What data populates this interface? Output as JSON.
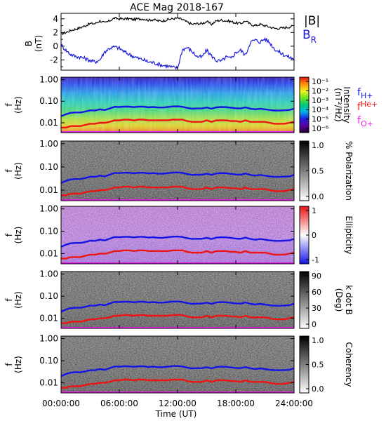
{
  "title": "ACE Mag 2018-167",
  "xlabel": "Time (UT)",
  "x_ticks": [
    "00:00:00",
    "06:00:00",
    "12:00:00",
    "18:00:00",
    "24:00:00"
  ],
  "x_range_hours": [
    0,
    24
  ],
  "colors": {
    "B_total": "#000000",
    "B_R": "#1a1adc",
    "f_H": "#1414e6",
    "f_He": "#ee1414",
    "f_O": "#e61ee6"
  },
  "legend_right": {
    "B": "|B|",
    "BR_base": "B",
    "BR_sub": "R",
    "fH_base": "f",
    "fH_sub": "H+",
    "fHe_base": "f",
    "fHe_sub": "He+",
    "fO_base": "f",
    "fO_sub": "O+"
  },
  "chart_data": [
    {
      "type": "line",
      "panel": "magnetic-field",
      "ylabel": "B",
      "yunit": "(nT)",
      "ylim": [
        -3.5,
        4.8
      ],
      "y_ticks": [
        "4",
        "2",
        "0",
        "-2"
      ],
      "y_tick_values": [
        4,
        2,
        0,
        -2
      ],
      "series": [
        {
          "name": "|B|",
          "x": [
            0,
            0.5,
            1,
            1.5,
            2,
            2.5,
            3,
            3.5,
            4,
            4.5,
            5,
            5.5,
            6,
            6.5,
            7,
            7.5,
            8,
            8.5,
            9,
            9.5,
            10,
            10.5,
            11,
            11.5,
            12,
            12.5,
            13,
            13.5,
            14,
            14.5,
            15,
            15.5,
            16,
            16.5,
            17,
            17.5,
            18,
            18.5,
            19,
            19.5,
            20,
            20.5,
            21,
            21.5,
            22,
            22.5,
            23,
            23.5,
            24
          ],
          "y": [
            1.8,
            2.0,
            2.3,
            2.5,
            2.7,
            3.0,
            3.3,
            3.3,
            3.7,
            3.4,
            3.7,
            4.1,
            4.0,
            4.0,
            4.0,
            3.9,
            4.0,
            4.0,
            3.8,
            3.9,
            3.7,
            3.7,
            3.9,
            4.0,
            4.1,
            3.9,
            3.5,
            3.2,
            3.3,
            3.3,
            3.6,
            3.2,
            3.7,
            3.8,
            3.7,
            3.6,
            3.4,
            3.3,
            3.7,
            3.2,
            3.0,
            3.2,
            3.0,
            2.8,
            2.6,
            2.6,
            2.7,
            2.8,
            3.0
          ]
        },
        {
          "name": "B",
          "x": [
            0,
            0.5,
            1,
            1.5,
            2,
            2.5,
            3,
            3.5,
            4,
            4.5,
            5,
            5.5,
            6,
            6.5,
            7,
            7.5,
            8,
            8.5,
            9,
            9.5,
            10,
            10.5,
            11,
            11.5,
            12,
            12.5,
            13,
            13.5,
            14,
            14.5,
            15,
            15.5,
            16,
            16.5,
            17,
            17.5,
            18,
            18.5,
            19,
            19.5,
            20,
            20.5,
            21,
            21.5,
            22,
            22.5,
            23,
            23.5,
            24
          ],
          "y": [
            0.2,
            -0.6,
            -1.2,
            -1.5,
            -1.6,
            -1.8,
            -2.1,
            -2.3,
            -2.0,
            -0.8,
            -0.3,
            -0.1,
            -0.3,
            -0.8,
            -1.2,
            -1.5,
            -1.8,
            -2.0,
            -2.3,
            -2.4,
            -2.6,
            -2.8,
            -2.9,
            -3.1,
            -3.2,
            -0.5,
            -0.2,
            -0.8,
            -1.5,
            -1.6,
            -0.6,
            -1.4,
            -2.1,
            -2.2,
            -1.6,
            -1.8,
            -0.9,
            -0.6,
            -1.3,
            0.6,
            0.9,
            0.6,
            1.1,
            0.5,
            -0.4,
            -0.9,
            -1.3,
            -1.6,
            -1.9
          ]
        }
      ]
    },
    {
      "type": "heatmap",
      "panel": "intensity",
      "ylabel": "f",
      "yunit": "(Hz)",
      "y_ticks": [
        "1.00",
        "0.10",
        "0.01"
      ],
      "yscale": "log",
      "colorbar_label": "Intensity",
      "colorbar_unit": "(nT²/Hz)",
      "colorbar_ticks": [
        "10⁻¹",
        "10⁻²",
        "10⁻³",
        "10⁻⁴",
        "10⁻⁵",
        "10⁻⁶"
      ],
      "colormap": "rainbow"
    },
    {
      "type": "heatmap",
      "panel": "polarization",
      "ylabel": "f",
      "yunit": "(Hz)",
      "y_ticks": [
        "1.00",
        "0.10",
        "0.01"
      ],
      "colorbar_label": "% Polarization",
      "colorbar_ticks": [
        "1.0",
        "0.5",
        "0.0"
      ],
      "colormap": "gray"
    },
    {
      "type": "heatmap",
      "panel": "ellipticity",
      "ylabel": "f",
      "yunit": "(Hz)",
      "y_ticks": [
        "1.00",
        "0.10",
        "0.01"
      ],
      "colorbar_label": "Ellipticity",
      "colorbar_ticks": [
        "1",
        "0",
        "-1"
      ],
      "colormap": "blue-white-red"
    },
    {
      "type": "heatmap",
      "panel": "wave-normal-angle",
      "ylabel": "f",
      "yunit": "(Hz)",
      "y_ticks": [
        "1.00",
        "0.10",
        "0.01"
      ],
      "colorbar_label": "k dot B",
      "colorbar_unit": "(Deg)",
      "colorbar_ticks": [
        "90",
        "60",
        "30",
        "0"
      ],
      "colormap": "gray"
    },
    {
      "type": "heatmap",
      "panel": "coherency",
      "ylabel": "f",
      "yunit": "(Hz)",
      "y_ticks": [
        "1.00",
        "0.10",
        "0.01"
      ],
      "colorbar_label": "Coherency",
      "colorbar_ticks": [
        "1.0",
        "0.5",
        "0.0"
      ],
      "colormap": "gray"
    }
  ],
  "gyrofrequency_lines": {
    "x": [
      0,
      0.5,
      1,
      1.5,
      2,
      2.5,
      3,
      3.5,
      4,
      4.5,
      5,
      5.5,
      6,
      6.5,
      7,
      7.5,
      8,
      8.5,
      9,
      9.5,
      10,
      10.5,
      11,
      11.5,
      12,
      12.5,
      13,
      13.5,
      14,
      14.5,
      15,
      15.5,
      16,
      16.5,
      17,
      17.5,
      18,
      18.5,
      19,
      19.5,
      20,
      20.5,
      21,
      21.5,
      22,
      22.5,
      23,
      23.5,
      24
    ],
    "f_H_plus_hz": [
      0.02,
      0.025,
      0.029,
      0.03,
      0.03,
      0.033,
      0.038,
      0.037,
      0.042,
      0.039,
      0.046,
      0.055,
      0.054,
      0.056,
      0.056,
      0.053,
      0.056,
      0.056,
      0.052,
      0.054,
      0.051,
      0.051,
      0.054,
      0.057,
      0.058,
      0.055,
      0.049,
      0.045,
      0.046,
      0.046,
      0.051,
      0.045,
      0.052,
      0.054,
      0.053,
      0.05,
      0.047,
      0.046,
      0.052,
      0.045,
      0.042,
      0.045,
      0.042,
      0.039,
      0.037,
      0.037,
      0.038,
      0.039,
      0.045
    ],
    "f_He_plus_hz": [
      0.006,
      0.006,
      0.007,
      0.007,
      0.007,
      0.008,
      0.009,
      0.009,
      0.01,
      0.01,
      0.011,
      0.013,
      0.013,
      0.014,
      0.014,
      0.013,
      0.014,
      0.014,
      0.013,
      0.013,
      0.013,
      0.013,
      0.013,
      0.014,
      0.014,
      0.014,
      0.012,
      0.011,
      0.011,
      0.011,
      0.013,
      0.011,
      0.013,
      0.013,
      0.013,
      0.012,
      0.012,
      0.011,
      0.013,
      0.011,
      0.011,
      0.011,
      0.011,
      0.01,
      0.009,
      0.009,
      0.009,
      0.01,
      0.011
    ],
    "f_O_plus_hz": [
      0.0014,
      0.0015,
      0.0017,
      0.0018,
      0.0019,
      0.002,
      0.0024,
      0.0024,
      0.0026,
      0.0025,
      0.0029,
      0.0034,
      0.0034,
      0.0035,
      0.0035,
      0.0033,
      0.0035,
      0.0035,
      0.0033,
      0.0034,
      0.0032,
      0.0032,
      0.0034,
      0.0036,
      0.0036,
      0.0034,
      0.0031,
      0.0028,
      0.0029,
      0.0029,
      0.0032,
      0.0028,
      0.0033,
      0.0034,
      0.0033,
      0.0031,
      0.0029,
      0.0029,
      0.0033,
      0.0028,
      0.0027,
      0.0028,
      0.0026,
      0.0024,
      0.0023,
      0.0023,
      0.0024,
      0.0024,
      0.0028
    ]
  }
}
